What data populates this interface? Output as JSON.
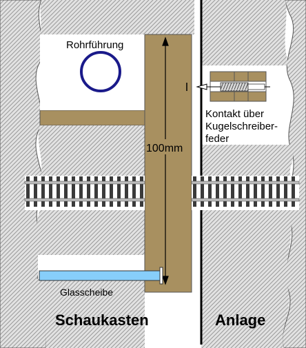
{
  "labels": {
    "pipe": "Rohrführung",
    "dimension": "100mm",
    "contact_line1": "Kontakt über",
    "contact_line2": "Kugelschreiber-",
    "contact_line3": "feder",
    "glass": "Glasscheibe",
    "left_section": "Schaukasten",
    "right_section": "Anlage"
  },
  "colors": {
    "board": "#a89060",
    "hatch": "#cccccc",
    "track_gray": "#bdbdbd",
    "sleeper": "#3a3a3a",
    "pipe_ring": "#1a1a8a",
    "glass": "#87cefa",
    "spring": "#c8c8c8"
  }
}
